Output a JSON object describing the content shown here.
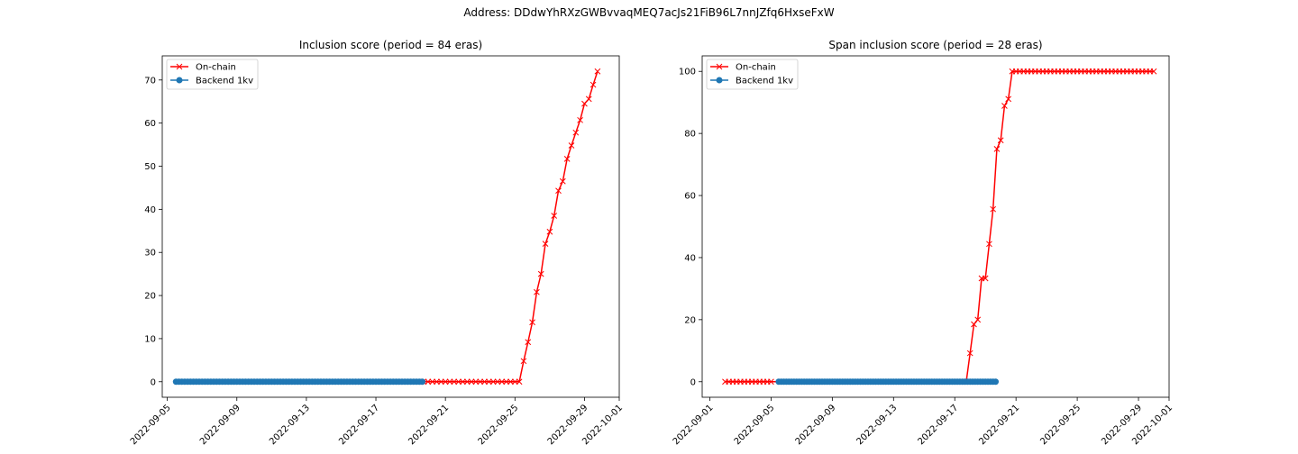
{
  "suptitle": "Address: DDdwYhRXzGWBvvaqMEQ7acJs21FiB96L7nnJZfq6HxseFxW",
  "colors": {
    "onchain": "#ff0000",
    "backend": "#1f77b4"
  },
  "chart_data": [
    {
      "type": "line",
      "title": "Inclusion score (period = 84 eras)",
      "xlabel": "",
      "ylabel": "",
      "x_type": "date",
      "xlim": [
        "2022-09-04T17:00",
        "2022-10-01T00:00"
      ],
      "ylim": [
        -3.6,
        75.6
      ],
      "yticks": [
        0,
        10,
        20,
        30,
        40,
        50,
        60,
        70
      ],
      "xticks": [
        "2022-09-05",
        "2022-09-09",
        "2022-09-13",
        "2022-09-17",
        "2022-09-21",
        "2022-09-25",
        "2022-09-29",
        "2022-10-01"
      ],
      "grid": false,
      "legend": "upper left",
      "series": [
        {
          "name": "On-chain",
          "marker": "x",
          "color": "#ff0000",
          "x": [
            "2022-09-19T18:00",
            "2022-09-20T00:00",
            "2022-09-20T06:00",
            "2022-09-20T12:00",
            "2022-09-20T18:00",
            "2022-09-21T00:00",
            "2022-09-21T06:00",
            "2022-09-21T12:00",
            "2022-09-21T18:00",
            "2022-09-22T00:00",
            "2022-09-22T06:00",
            "2022-09-22T12:00",
            "2022-09-22T18:00",
            "2022-09-23T00:00",
            "2022-09-23T06:00",
            "2022-09-23T12:00",
            "2022-09-23T18:00",
            "2022-09-24T00:00",
            "2022-09-24T06:00",
            "2022-09-24T12:00",
            "2022-09-24T18:00",
            "2022-09-25T00:00",
            "2022-09-25T06:00",
            "2022-09-25T12:00",
            "2022-09-25T18:00",
            "2022-09-26T00:00",
            "2022-09-26T06:00",
            "2022-09-26T12:00",
            "2022-09-26T18:00",
            "2022-09-27T00:00",
            "2022-09-27T06:00",
            "2022-09-27T12:00",
            "2022-09-27T18:00",
            "2022-09-28T00:00",
            "2022-09-28T06:00",
            "2022-09-28T12:00",
            "2022-09-28T18:00",
            "2022-09-29T00:00",
            "2022-09-29T06:00",
            "2022-09-29T12:00",
            "2022-09-29T18:00"
          ],
          "y": [
            0,
            0,
            0,
            0,
            0,
            0,
            0,
            0,
            0,
            0,
            0,
            0,
            0,
            0,
            0,
            0,
            0,
            0,
            0,
            0,
            0,
            0,
            0,
            4.8,
            9.2,
            13.8,
            20.8,
            25.0,
            32.0,
            34.8,
            38.5,
            44.3,
            46.5,
            51.7,
            54.8,
            57.8,
            60.7,
            64.5,
            65.6,
            68.9,
            72.0
          ]
        },
        {
          "name": "Backend 1kv",
          "marker": "o",
          "color": "#1f77b4",
          "x_range": [
            "2022-09-05T12:00",
            "2022-09-19T18:00"
          ],
          "x_step_hours": 4,
          "y_constant": 0
        }
      ]
    },
    {
      "type": "line",
      "title": "Span inclusion score (period = 28 eras)",
      "xlabel": "",
      "ylabel": "",
      "x_type": "date",
      "xlim": [
        "2022-08-31T12:00",
        "2022-10-01T00:00"
      ],
      "ylim": [
        -5,
        105
      ],
      "yticks": [
        0,
        20,
        40,
        60,
        80,
        100
      ],
      "xticks": [
        "2022-09-01",
        "2022-09-05",
        "2022-09-09",
        "2022-09-13",
        "2022-09-17",
        "2022-09-21",
        "2022-09-25",
        "2022-09-29",
        "2022-10-01"
      ],
      "grid": false,
      "legend": "upper left",
      "series": [
        {
          "name": "On-chain",
          "marker": "x",
          "color": "#ff0000",
          "x": [
            "2022-09-02T00:00",
            "2022-09-02T06:00",
            "2022-09-02T12:00",
            "2022-09-02T18:00",
            "2022-09-03T00:00",
            "2022-09-03T06:00",
            "2022-09-03T12:00",
            "2022-09-03T18:00",
            "2022-09-04T00:00",
            "2022-09-04T06:00",
            "2022-09-04T12:00",
            "2022-09-04T18:00",
            "2022-09-05T00:00",
            "2022-09-17T18:00",
            "2022-09-18T00:00",
            "2022-09-18T06:00",
            "2022-09-18T12:00",
            "2022-09-18T18:00",
            "2022-09-19T00:00",
            "2022-09-19T06:00",
            "2022-09-19T12:00",
            "2022-09-19T18:00",
            "2022-09-20T00:00",
            "2022-09-20T06:00",
            "2022-09-20T12:00",
            "2022-09-20T18:00",
            "2022-09-21T00:00",
            "2022-09-21T06:00",
            "2022-09-21T12:00",
            "2022-09-21T18:00",
            "2022-09-22T00:00",
            "2022-09-22T06:00",
            "2022-09-22T12:00",
            "2022-09-22T18:00",
            "2022-09-23T00:00",
            "2022-09-23T06:00",
            "2022-09-23T12:00",
            "2022-09-23T18:00",
            "2022-09-24T00:00",
            "2022-09-24T06:00",
            "2022-09-24T12:00",
            "2022-09-24T18:00",
            "2022-09-25T00:00",
            "2022-09-25T06:00",
            "2022-09-25T12:00",
            "2022-09-25T18:00",
            "2022-09-26T00:00",
            "2022-09-26T06:00",
            "2022-09-26T12:00",
            "2022-09-26T18:00",
            "2022-09-27T00:00",
            "2022-09-27T06:00",
            "2022-09-27T12:00",
            "2022-09-27T18:00",
            "2022-09-28T00:00",
            "2022-09-28T06:00",
            "2022-09-28T12:00",
            "2022-09-28T18:00",
            "2022-09-29T00:00",
            "2022-09-29T06:00",
            "2022-09-29T12:00",
            "2022-09-29T18:00",
            "2022-09-30T00:00"
          ],
          "y": [
            0,
            0,
            0,
            0,
            0,
            0,
            0,
            0,
            0,
            0,
            0,
            0,
            0,
            0,
            9.2,
            18.5,
            20.0,
            33.3,
            33.3,
            44.4,
            55.6,
            75.0,
            77.8,
            88.9,
            91.1,
            100,
            100,
            100,
            100,
            100,
            100,
            100,
            100,
            100,
            100,
            100,
            100,
            100,
            100,
            100,
            100,
            100,
            100,
            100,
            100,
            100,
            100,
            100,
            100,
            100,
            100,
            100,
            100,
            100,
            100,
            100,
            100,
            100,
            100,
            100,
            100,
            100,
            100
          ]
        },
        {
          "name": "Backend 1kv",
          "marker": "o",
          "color": "#1f77b4",
          "x_range": [
            "2022-09-05T12:00",
            "2022-09-19T18:00"
          ],
          "x_step_hours": 4,
          "y_constant": 0
        }
      ]
    }
  ]
}
